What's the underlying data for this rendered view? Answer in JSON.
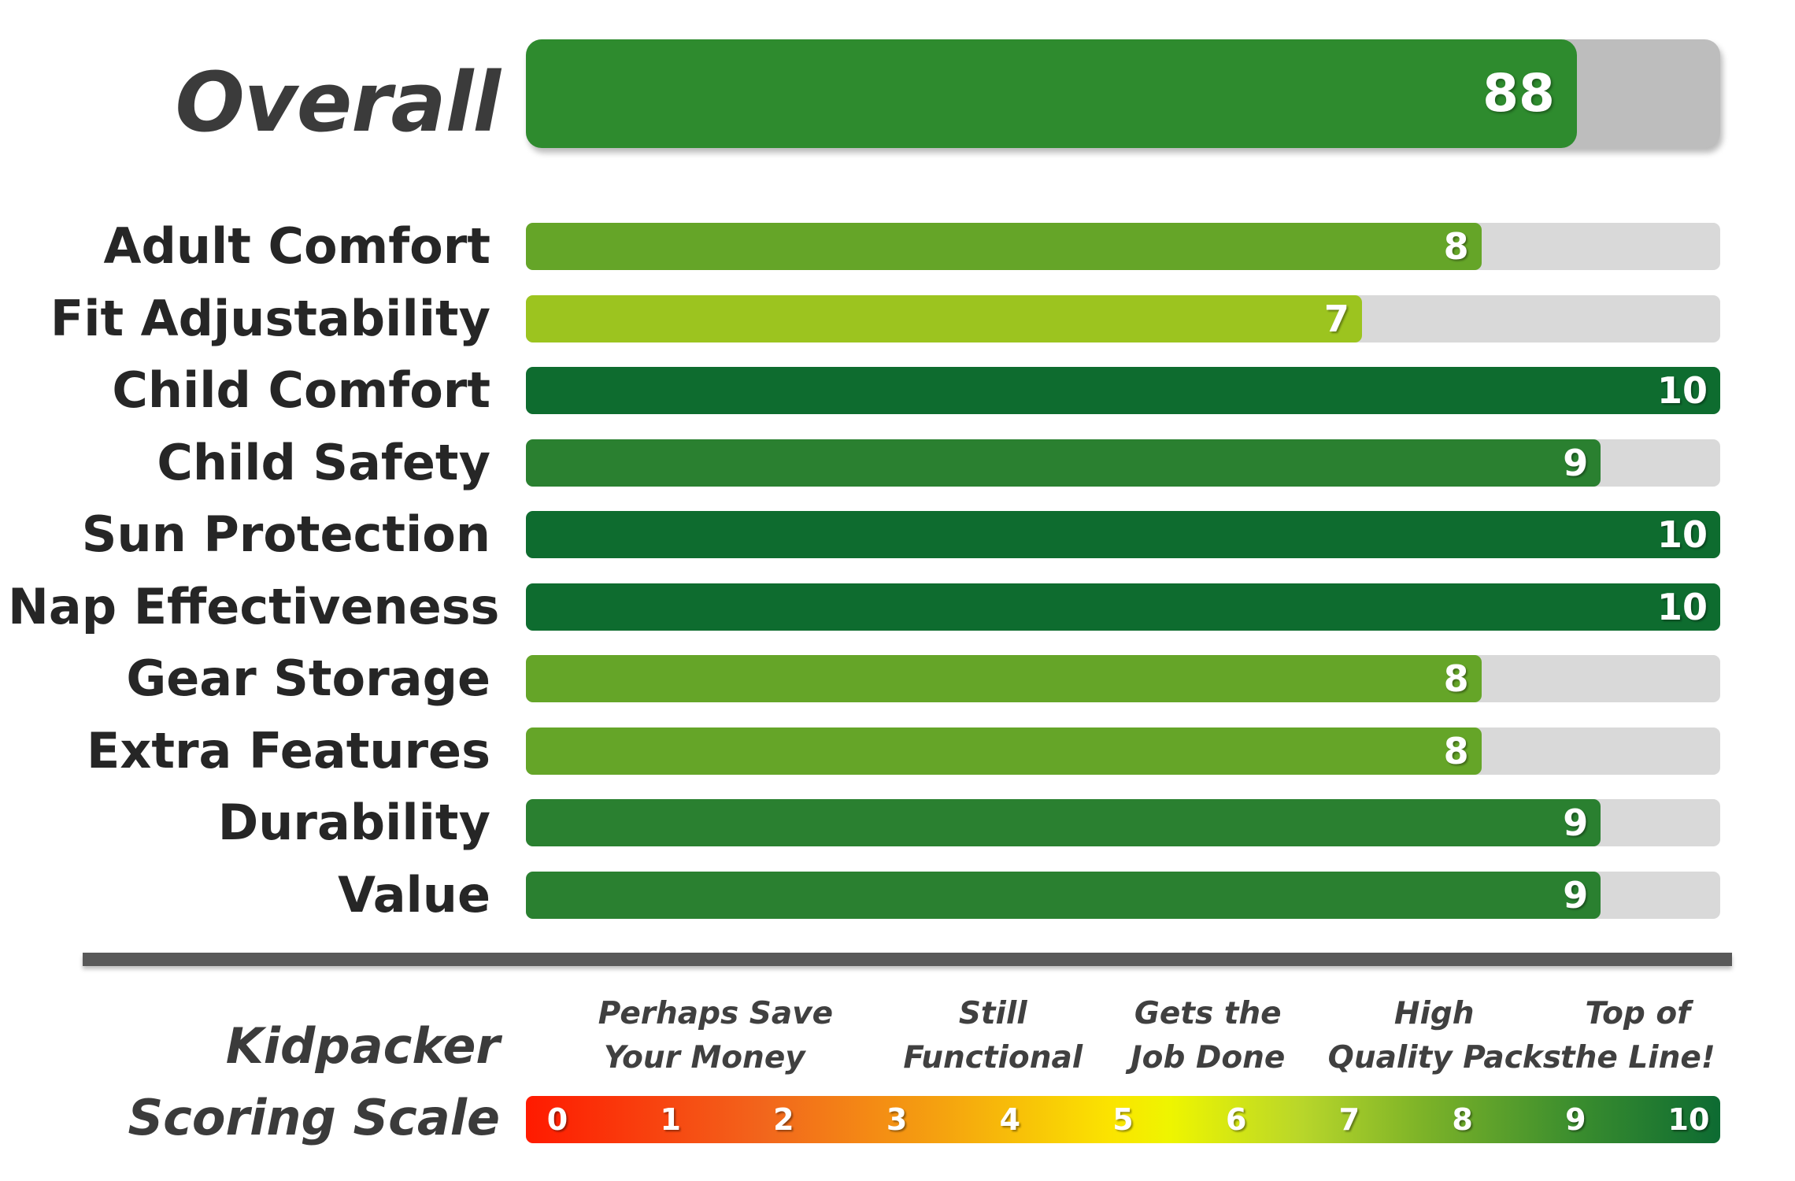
{
  "chart_data": {
    "type": "bar",
    "overall": {
      "label": "Overall",
      "value": 88,
      "max": 100,
      "color": "#2e8b2e"
    },
    "categories": [
      "Adult Comfort",
      "Fit Adjustability",
      "Child Comfort",
      "Child Safety",
      "Sun Protection",
      "Nap Effectiveness",
      "Gear Storage",
      "Extra Features",
      "Durability",
      "Value"
    ],
    "values": [
      8,
      7,
      10,
      9,
      10,
      10,
      8,
      8,
      9,
      9
    ],
    "xlim": [
      0,
      10
    ],
    "bar_colors": {
      "7": "#9cc41f",
      "8": "#65a528",
      "9": "#2a8030",
      "10": "#0e6c2f"
    },
    "track_color": "#d9d9d9"
  },
  "scale": {
    "title_line1": "Kidpacker",
    "title_line2": "Scoring Scale",
    "descriptors": [
      {
        "line1": "Perhaps Save",
        "line2": "Your Money",
        "at": 1.3
      },
      {
        "line1": "Still",
        "line2": "Functional",
        "at": 3.85
      },
      {
        "line1": "Gets the",
        "line2": "Job Done",
        "at": 5.75
      },
      {
        "line1": "High",
        "line2": "Quality Packs",
        "at": 7.75
      },
      {
        "line1": "Top of",
        "line2": "the Line!",
        "at": 9.55
      }
    ],
    "ticks": [
      "0",
      "1",
      "2",
      "3",
      "4",
      "5",
      "6",
      "7",
      "8",
      "9",
      "10"
    ]
  }
}
